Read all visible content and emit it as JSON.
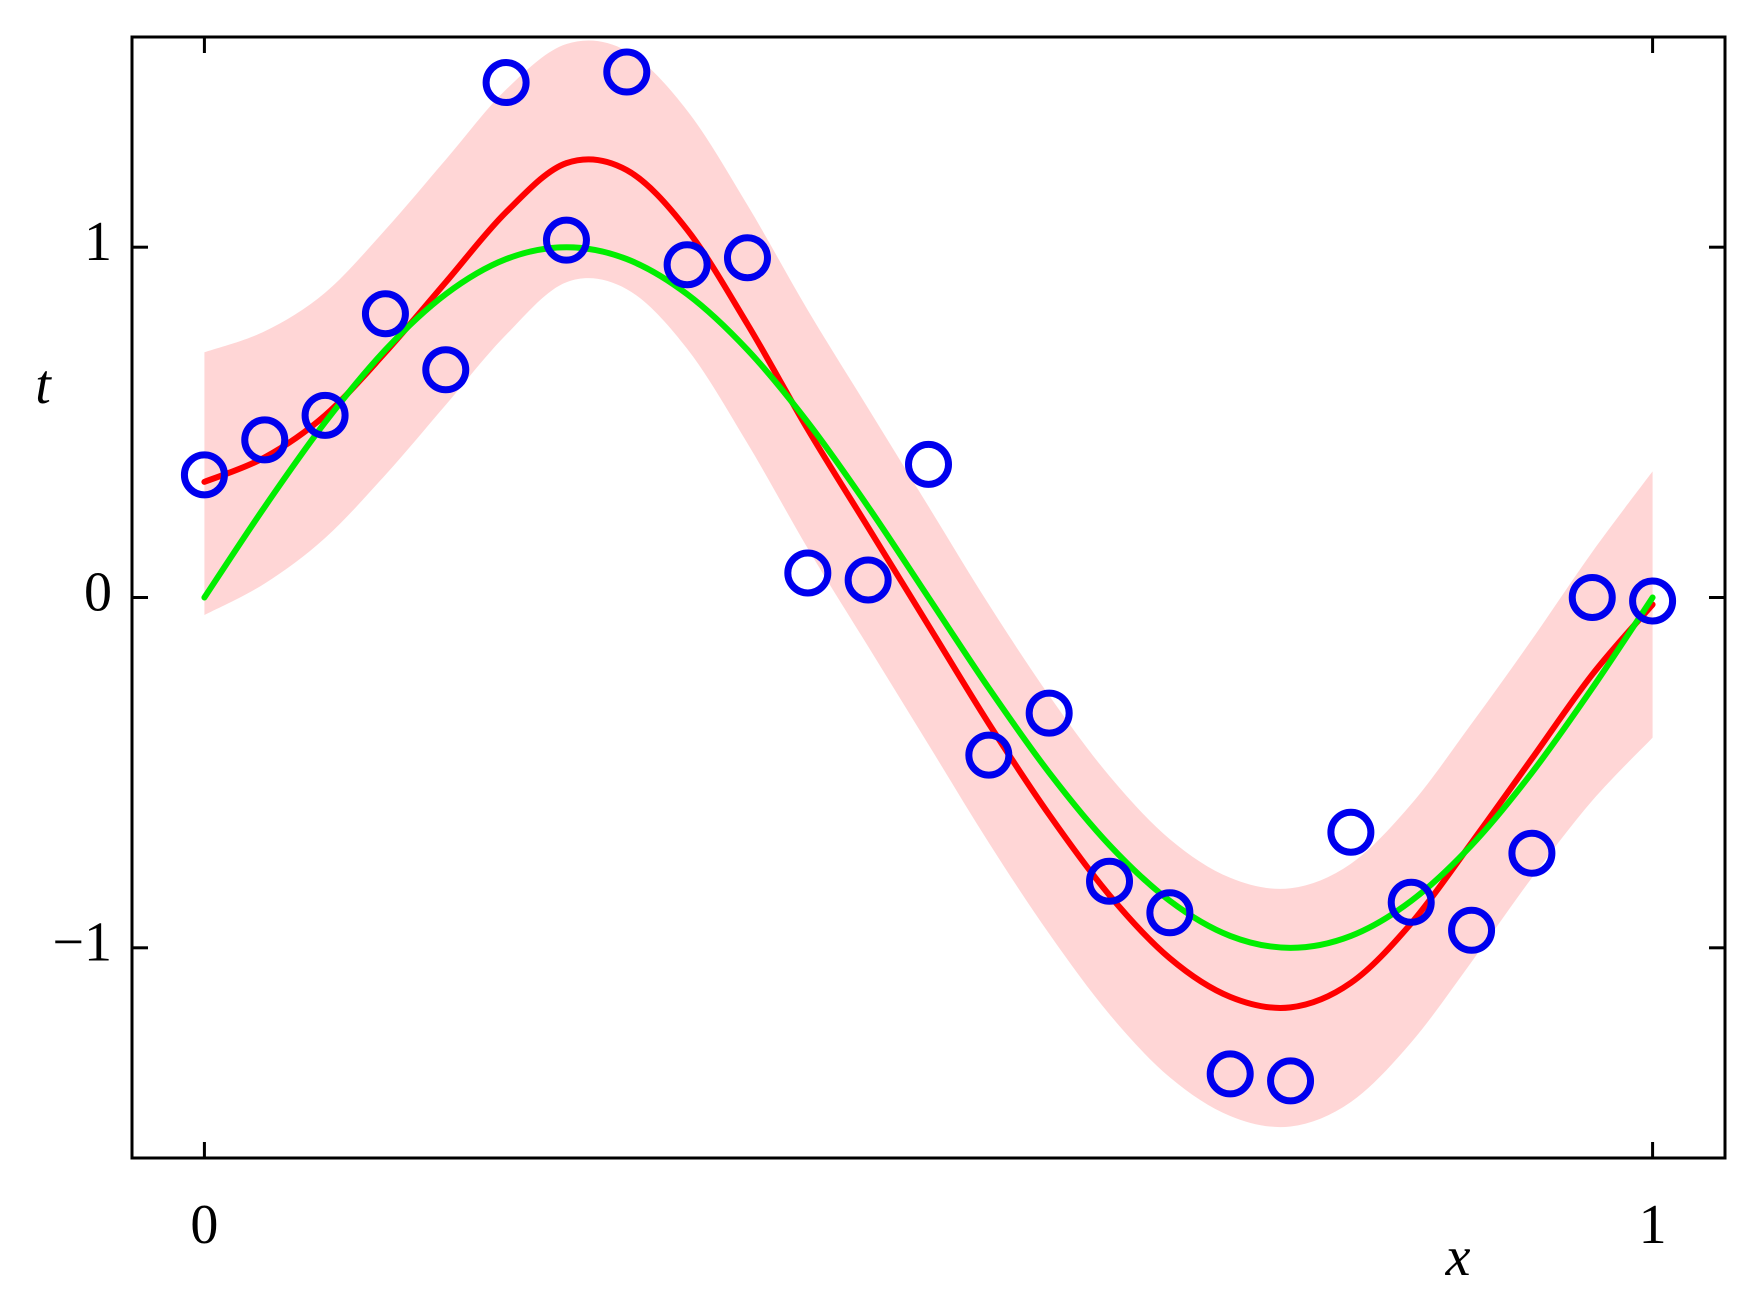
{
  "chart_data": {
    "type": "line",
    "xlabel": "x",
    "ylabel": "t",
    "xlim": [
      -0.05,
      1.05
    ],
    "ylim": [
      -1.6,
      1.6
    ],
    "xticks": [
      0,
      1
    ],
    "yticks": [
      {
        "value": -1,
        "label": "−1"
      },
      0,
      1
    ],
    "x": [
      0,
      0.041667,
      0.083333,
      0.125,
      0.166667,
      0.208333,
      0.25,
      0.291667,
      0.333333,
      0.375,
      0.416667,
      0.458333,
      0.5,
      0.541667,
      0.583333,
      0.625,
      0.666667,
      0.708333,
      0.75,
      0.791667,
      0.833333,
      0.875,
      0.916667,
      0.958333,
      1
    ],
    "band": {
      "color": "#ffd6d6",
      "upper": [
        0.7,
        0.76,
        0.87,
        1.05,
        1.25,
        1.45,
        1.58,
        1.56,
        1.39,
        1.12,
        0.82,
        0.54,
        0.26,
        -0.02,
        -0.28,
        -0.51,
        -0.69,
        -0.8,
        -0.83,
        -0.76,
        -0.59,
        -0.36,
        -0.12,
        0.13,
        0.36
      ],
      "lower": [
        -0.05,
        0.04,
        0.17,
        0.35,
        0.55,
        0.75,
        0.9,
        0.88,
        0.71,
        0.44,
        0.14,
        -0.14,
        -0.42,
        -0.7,
        -0.96,
        -1.19,
        -1.37,
        -1.48,
        -1.51,
        -1.44,
        -1.27,
        -1.04,
        -0.8,
        -0.58,
        -0.4
      ]
    },
    "series": [
      {
        "color": "#ff0000",
        "values": [
          0.33,
          0.4,
          0.52,
          0.7,
          0.9,
          1.1,
          1.24,
          1.22,
          1.05,
          0.78,
          0.48,
          0.2,
          -0.08,
          -0.36,
          -0.62,
          -0.85,
          -1.03,
          -1.14,
          -1.17,
          -1.1,
          -0.93,
          -0.7,
          -0.46,
          -0.22,
          -0.02
        ]
      },
      {
        "color": "#00ee00",
        "values": [
          0,
          0.259,
          0.5,
          0.707,
          0.866,
          0.966,
          1,
          0.966,
          0.866,
          0.707,
          0.5,
          0.259,
          0,
          -0.259,
          -0.5,
          -0.707,
          -0.866,
          -0.966,
          -1,
          -0.966,
          -0.866,
          -0.707,
          -0.5,
          -0.259,
          0
        ]
      }
    ],
    "points": {
      "color": "#0000ee",
      "values": [
        0.35,
        0.45,
        0.52,
        0.81,
        0.65,
        1.47,
        1.02,
        1.5,
        0.95,
        0.97,
        0.07,
        0.05,
        0.38,
        -0.45,
        -0.33,
        -0.81,
        -0.9,
        -1.36,
        -1.38,
        -0.67,
        -0.87,
        -0.95,
        -0.73,
        0.0,
        -0.01
      ]
    }
  }
}
